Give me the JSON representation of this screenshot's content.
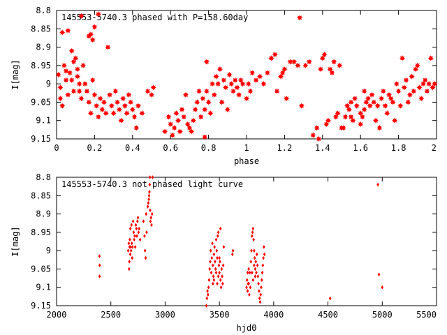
{
  "chart_data": [
    {
      "type": "scatter",
      "title": "145553-5740.3 phased with P=158.60day",
      "xlabel": "phase",
      "ylabel": "I[mag]",
      "xlim": [
        0,
        2
      ],
      "ylim": [
        8.8,
        9.15
      ],
      "y_inverted": true,
      "grid": false,
      "marker": "star",
      "color": "#ff0000",
      "xticks": [
        0,
        0.2,
        0.4,
        0.6,
        0.8,
        1,
        1.2,
        1.4,
        1.6,
        1.8,
        2
      ],
      "xtick_labels": [
        "0",
        "0.2",
        "0.4",
        "0.6",
        "0.8",
        "1",
        "1.2",
        "1.4",
        "1.6",
        "1.8",
        "2"
      ],
      "yticks": [
        8.8,
        8.85,
        8.9,
        8.95,
        9,
        9.05,
        9.1,
        9.15
      ],
      "ytick_labels": [
        "8.8",
        "8.85",
        "8.9",
        "8.95",
        "9",
        "9.05",
        "9.1",
        "9.15"
      ],
      "points": [
        [
          0.01,
          8.975
        ],
        [
          0.02,
          9.01
        ],
        [
          0.03,
          8.86
        ],
        [
          0.04,
          8.95
        ],
        [
          0.05,
          8.99
        ],
        [
          0.06,
          9.03
        ],
        [
          0.02,
          9.04
        ],
        [
          0.03,
          9.06
        ],
        [
          0.05,
          8.965
        ],
        [
          0.07,
          8.97
        ],
        [
          0.08,
          8.99
        ],
        [
          0.09,
          9.02
        ],
        [
          0.1,
          8.93
        ],
        [
          0.11,
          8.96
        ],
        [
          0.12,
          9.0
        ],
        [
          0.13,
          9.04
        ],
        [
          0.06,
          8.855
        ],
        [
          0.08,
          8.91
        ],
        [
          0.09,
          8.94
        ],
        [
          0.11,
          8.98
        ],
        [
          0.12,
          9.02
        ],
        [
          0.14,
          8.95
        ],
        [
          0.15,
          9.0
        ],
        [
          0.16,
          9.02
        ],
        [
          0.17,
          9.05
        ],
        [
          0.18,
          9.08
        ],
        [
          0.19,
          8.99
        ],
        [
          0.2,
          9.03
        ],
        [
          0.21,
          9.06
        ],
        [
          0.22,
          9.09
        ],
        [
          0.23,
          9.04
        ],
        [
          0.24,
          9.07
        ],
        [
          0.18,
          8.865
        ],
        [
          0.19,
          8.88
        ],
        [
          0.17,
          8.87
        ],
        [
          0.2,
          8.845
        ],
        [
          0.22,
          8.81
        ],
        [
          0.13,
          8.815
        ],
        [
          0.25,
          9.05
        ],
        [
          0.26,
          9.08
        ],
        [
          0.27,
          8.9
        ],
        [
          0.28,
          9.03
        ],
        [
          0.29,
          9.06
        ],
        [
          0.3,
          9.08
        ],
        [
          0.31,
          9.02
        ],
        [
          0.32,
          9.05
        ],
        [
          0.33,
          9.07
        ],
        [
          0.34,
          9.1
        ],
        [
          0.35,
          9.04
        ],
        [
          0.36,
          9.06
        ],
        [
          0.37,
          9.08
        ],
        [
          0.38,
          9.03
        ],
        [
          0.39,
          9.05
        ],
        [
          0.4,
          9.07
        ],
        [
          0.41,
          9.09
        ],
        [
          0.42,
          9.12
        ],
        [
          0.43,
          9.06
        ],
        [
          0.45,
          9.08
        ],
        [
          0.48,
          9.02
        ],
        [
          0.5,
          9.03
        ],
        [
          0.51,
          9.01
        ],
        [
          0.57,
          9.13
        ],
        [
          0.59,
          9.09
        ],
        [
          0.6,
          9.11
        ],
        [
          0.61,
          9.14
        ],
        [
          0.62,
          9.12
        ],
        [
          0.63,
          9.08
        ],
        [
          0.64,
          9.1
        ],
        [
          0.65,
          9.13
        ],
        [
          0.66,
          9.07
        ],
        [
          0.67,
          9.09
        ],
        [
          0.68,
          9.03
        ],
        [
          0.69,
          9.11
        ],
        [
          0.7,
          9.12
        ],
        [
          0.71,
          9.13
        ],
        [
          0.72,
          9.1
        ],
        [
          0.73,
          9.07
        ],
        [
          0.74,
          9.05
        ],
        [
          0.75,
          9.02
        ],
        [
          0.76,
          9.09
        ],
        [
          0.77,
          9.04
        ],
        [
          0.78,
          9.07
        ],
        [
          0.79,
          9.02
        ],
        [
          0.8,
          9.05
        ],
        [
          0.81,
          9.08
        ],
        [
          0.79,
          8.94
        ],
        [
          0.78,
          9.145
        ],
        [
          0.82,
          9.0
        ],
        [
          0.83,
          9.03
        ],
        [
          0.84,
          8.98
        ],
        [
          0.85,
          9.0
        ],
        [
          0.86,
          8.96
        ],
        [
          0.87,
          9.05
        ],
        [
          0.88,
          8.99
        ],
        [
          0.89,
          9.01
        ],
        [
          0.9,
          9.07
        ],
        [
          0.91,
          8.975
        ],
        [
          0.92,
          9.0
        ],
        [
          0.93,
          9.02
        ],
        [
          0.94,
          8.99
        ],
        [
          0.95,
          9.01
        ],
        [
          0.96,
          9.03
        ],
        [
          0.97,
          8.99
        ],
        [
          0.98,
          9.0
        ],
        [
          1.0,
          9.04
        ],
        [
          1.01,
          9.0
        ],
        [
          1.02,
          9.02
        ],
        [
          1.03,
          8.97
        ],
        [
          1.05,
          8.99
        ],
        [
          1.07,
          8.98
        ],
        [
          1.09,
          9.0
        ],
        [
          1.11,
          8.97
        ],
        [
          1.13,
          8.93
        ],
        [
          1.15,
          8.92
        ],
        [
          1.16,
          9.02
        ],
        [
          1.18,
          8.98
        ],
        [
          1.19,
          8.97
        ],
        [
          1.2,
          8.96
        ],
        [
          1.21,
          9.04
        ],
        [
          1.23,
          8.94
        ],
        [
          1.25,
          8.94
        ],
        [
          1.27,
          8.95
        ],
        [
          1.28,
          8.82
        ],
        [
          1.29,
          9.06
        ],
        [
          1.31,
          8.95
        ],
        [
          1.33,
          8.94
        ],
        [
          1.35,
          9.14
        ],
        [
          1.37,
          9.12
        ],
        [
          1.38,
          9.15
        ],
        [
          1.39,
          8.96
        ],
        [
          1.4,
          8.93
        ],
        [
          1.41,
          8.92
        ],
        [
          1.42,
          9.11
        ],
        [
          1.43,
          9.1
        ],
        [
          1.44,
          8.96
        ],
        [
          1.45,
          8.97
        ],
        [
          1.46,
          8.94
        ],
        [
          1.47,
          9.09
        ],
        [
          1.48,
          9.08
        ],
        [
          1.49,
          8.95
        ],
        [
          1.5,
          9.12
        ],
        [
          1.51,
          9.12
        ],
        [
          1.52,
          9.09
        ],
        [
          1.53,
          9.06
        ],
        [
          1.54,
          9.07
        ],
        [
          1.55,
          9.05
        ],
        [
          1.56,
          9.1
        ],
        [
          1.57,
          9.04
        ],
        [
          1.58,
          9.06
        ],
        [
          1.6,
          9.11
        ],
        [
          1.61,
          9.09
        ],
        [
          1.62,
          9.07
        ],
        [
          1.63,
          9.05
        ],
        [
          1.64,
          9.04
        ],
        [
          1.65,
          9.06
        ],
        [
          1.66,
          9.03
        ],
        [
          1.67,
          9.05
        ],
        [
          1.68,
          9.1
        ],
        [
          1.69,
          9.06
        ],
        [
          1.7,
          9.12
        ],
        [
          1.71,
          9.04
        ],
        [
          1.72,
          9.02
        ],
        [
          1.73,
          9.06
        ],
        [
          1.74,
          9.08
        ],
        [
          1.75,
          9.03
        ],
        [
          1.76,
          9.04
        ],
        [
          1.77,
          9.05
        ],
        [
          1.78,
          9.1
        ],
        [
          1.79,
          9.0
        ],
        [
          1.8,
          9.02
        ],
        [
          1.81,
          9.06
        ],
        [
          1.82,
          8.93
        ],
        [
          1.83,
          9.01
        ],
        [
          1.84,
          8.99
        ],
        [
          1.85,
          9.05
        ],
        [
          1.86,
          9.03
        ],
        [
          1.87,
          8.98
        ],
        [
          1.88,
          9.02
        ],
        [
          1.89,
          8.96
        ],
        [
          1.9,
          8.95
        ],
        [
          1.91,
          9.01
        ],
        [
          1.92,
          9.04
        ],
        [
          1.93,
          9.0
        ],
        [
          1.94,
          8.99
        ],
        [
          1.95,
          9.02
        ],
        [
          1.96,
          9.0
        ],
        [
          1.97,
          8.93
        ],
        [
          1.98,
          9.01
        ],
        [
          1.99,
          9.0
        ],
        [
          1.62,
          9.02
        ],
        [
          1.55,
          9.09
        ],
        [
          1.6,
          9.08
        ]
      ]
    },
    {
      "type": "scatter",
      "title": "145553-5740.3 not phased light curve",
      "xlabel": "hjd0",
      "ylabel": "I[mag]",
      "xlim": [
        2000,
        5500
      ],
      "ylim": [
        8.8,
        9.15
      ],
      "y_inverted": true,
      "grid": false,
      "marker": "diamond",
      "color": "#ff0000",
      "xticks": [
        2000,
        2500,
        3000,
        3500,
        4000,
        4500,
        5000,
        5500
      ],
      "xtick_labels": [
        "2000",
        "2500",
        "3000",
        "3500",
        "4000",
        "4500",
        "5000",
        "5500"
      ],
      "yticks": [
        8.8,
        8.85,
        8.9,
        8.95,
        9,
        9.05,
        9.1,
        9.15
      ],
      "ytick_labels": [
        "8.8",
        "8.85",
        "8.9",
        "8.95",
        "9",
        "9.05",
        "9.1",
        "9.15"
      ],
      "points": [
        [
          2395,
          9.015
        ],
        [
          2397,
          9.04
        ],
        [
          2396,
          9.07
        ],
        [
          2660,
          9.0
        ],
        [
          2665,
          8.98
        ],
        [
          2668,
          9.05
        ],
        [
          2670,
          9.03
        ],
        [
          2672,
          8.99
        ],
        [
          2675,
          8.97
        ],
        [
          2678,
          9.01
        ],
        [
          2680,
          8.94
        ],
        [
          2683,
          8.99
        ],
        [
          2686,
          9.0
        ],
        [
          2690,
          8.93
        ],
        [
          2693,
          8.98
        ],
        [
          2696,
          9.02
        ],
        [
          2700,
          8.99
        ],
        [
          2705,
          8.92
        ],
        [
          2710,
          8.95
        ],
        [
          2715,
          8.97
        ],
        [
          2720,
          8.96
        ],
        [
          2725,
          8.99
        ],
        [
          2730,
          8.93
        ],
        [
          2735,
          8.94
        ],
        [
          2740,
          8.96
        ],
        [
          2745,
          8.92
        ],
        [
          2750,
          8.91
        ],
        [
          2755,
          8.95
        ],
        [
          2760,
          8.94
        ],
        [
          2770,
          8.97
        ],
        [
          2800,
          8.92
        ],
        [
          2810,
          8.96
        ],
        [
          2815,
          9.0
        ],
        [
          2820,
          9.02
        ],
        [
          2825,
          8.9
        ],
        [
          2830,
          8.95
        ],
        [
          2840,
          8.88
        ],
        [
          2845,
          8.87
        ],
        [
          2850,
          8.86
        ],
        [
          2852,
          8.85
        ],
        [
          2855,
          8.84
        ],
        [
          2858,
          8.82
        ],
        [
          2860,
          8.8
        ],
        [
          2862,
          8.89
        ],
        [
          2865,
          8.92
        ],
        [
          2870,
          8.91
        ],
        [
          2875,
          8.93
        ],
        [
          2880,
          8.9
        ],
        [
          2885,
          8.8
        ],
        [
          3380,
          9.15
        ],
        [
          3385,
          9.13
        ],
        [
          3390,
          9.11
        ],
        [
          3395,
          9.12
        ],
        [
          3400,
          9.1
        ],
        [
          3405,
          9.08
        ],
        [
          3410,
          9.05
        ],
        [
          3415,
          9.03
        ],
        [
          3420,
          9.0
        ],
        [
          3425,
          9.06
        ],
        [
          3430,
          9.02
        ],
        [
          3435,
          8.98
        ],
        [
          3440,
          9.04
        ],
        [
          3445,
          9.07
        ],
        [
          3450,
          9.01
        ],
        [
          3455,
          8.99
        ],
        [
          3460,
          9.03
        ],
        [
          3465,
          9.05
        ],
        [
          3470,
          8.97
        ],
        [
          3475,
          9.0
        ],
        [
          3480,
          9.02
        ],
        [
          3485,
          8.96
        ],
        [
          3490,
          8.95
        ],
        [
          3495,
          9.04
        ],
        [
          3500,
          9.06
        ],
        [
          3505,
          9.03
        ],
        [
          3510,
          9.08
        ],
        [
          3515,
          9.1
        ],
        [
          3520,
          9.05
        ],
        [
          3525,
          9.07
        ],
        [
          3530,
          9.09
        ],
        [
          3535,
          9.04
        ],
        [
          3540,
          8.99
        ],
        [
          3470,
          9.06
        ],
        [
          3480,
          9.09
        ],
        [
          3490,
          9.07
        ],
        [
          3500,
          9.02
        ],
        [
          3510,
          8.94
        ],
        [
          3450,
          9.08
        ],
        [
          3440,
          9.09
        ],
        [
          3620,
          9.01
        ],
        [
          3625,
          9.0
        ],
        [
          3750,
          9.1
        ],
        [
          3755,
          9.08
        ],
        [
          3760,
          9.11
        ],
        [
          3765,
          9.09
        ],
        [
          3770,
          9.05
        ],
        [
          3775,
          9.12
        ],
        [
          3780,
          9.06
        ],
        [
          3785,
          9.1
        ],
        [
          3790,
          9.03
        ],
        [
          3795,
          9.0
        ],
        [
          3800,
          8.96
        ],
        [
          3805,
          8.95
        ],
        [
          3810,
          8.94
        ],
        [
          3815,
          8.97
        ],
        [
          3820,
          9.0
        ],
        [
          3825,
          9.02
        ],
        [
          3830,
          9.05
        ],
        [
          3835,
          9.03
        ],
        [
          3840,
          9.06
        ],
        [
          3845,
          9.01
        ],
        [
          3850,
          9.04
        ],
        [
          3855,
          9.07
        ],
        [
          3860,
          9.09
        ],
        [
          3865,
          9.11
        ],
        [
          3870,
          9.13
        ],
        [
          3875,
          9.14
        ],
        [
          3880,
          9.12
        ],
        [
          3885,
          9.1
        ],
        [
          3890,
          9.08
        ],
        [
          3895,
          9.06
        ],
        [
          3900,
          9.04
        ],
        [
          3905,
          9.02
        ],
        [
          3910,
          8.99
        ],
        [
          3915,
          9.01
        ],
        [
          3800,
          9.06
        ],
        [
          3810,
          9.08
        ],
        [
          3820,
          9.04
        ],
        [
          3830,
          9.07
        ],
        [
          3760,
          9.06
        ],
        [
          3770,
          9.09
        ],
        [
          4520,
          9.13
        ],
        [
          4960,
          8.82
        ],
        [
          4970,
          9.065
        ],
        [
          5000,
          9.1
        ]
      ]
    }
  ]
}
